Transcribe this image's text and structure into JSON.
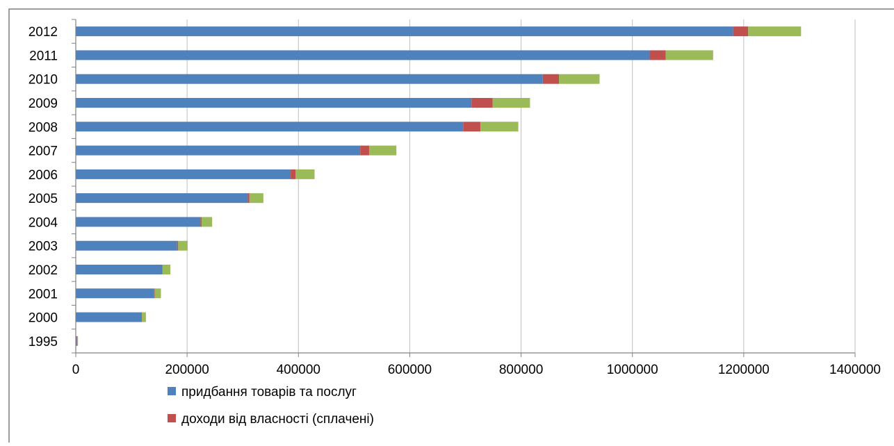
{
  "chart_data": {
    "type": "bar",
    "orientation": "horizontal",
    "stacked": true,
    "categories": [
      "1995",
      "2000",
      "2001",
      "2002",
      "2003",
      "2004",
      "2005",
      "2006",
      "2007",
      "2008",
      "2009",
      "2010",
      "2011",
      "2012"
    ],
    "series": [
      {
        "name": "придбання товарів та послуг",
        "color": "#4f81bd",
        "values": [
          2000,
          118000,
          141000,
          155000,
          182000,
          224000,
          309000,
          386000,
          511000,
          696000,
          711000,
          839000,
          1031000,
          1181000
        ]
      },
      {
        "name": "доходи від власності (сплачені)",
        "color": "#c0504d",
        "values": [
          500,
          1000,
          1000,
          1000,
          2000,
          2000,
          3000,
          9000,
          16000,
          31000,
          38000,
          29000,
          29000,
          27000
        ]
      },
      {
        "name": "",
        "color": "#9bbb59",
        "values": [
          1500,
          7000,
          11000,
          14000,
          17000,
          19000,
          25000,
          34000,
          49000,
          68000,
          67000,
          73000,
          85000,
          95000
        ]
      }
    ],
    "xlim": [
      0,
      1400000
    ],
    "xticks": [
      "0",
      "200000",
      "400000",
      "600000",
      "800000",
      "1000000",
      "1200000",
      "1400000"
    ],
    "title": "",
    "xlabel": "",
    "ylabel": "",
    "grid": "vertical",
    "legend_position": "bottom"
  }
}
